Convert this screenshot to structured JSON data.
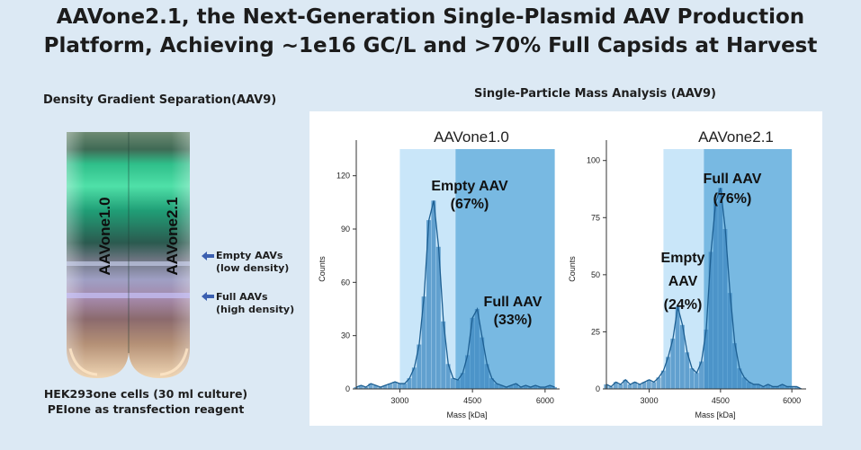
{
  "title": {
    "line1": "AAVone2.1, the Next-Generation Single-Plasmid AAV Production",
    "line2": "Platform, Achieving ~1e16 GC/L and >70% Full Capsids at Harvest"
  },
  "left_panel": {
    "heading": "Density Gradient Separation(AAV9)",
    "lane1_label": "AAVone1.0",
    "lane2_label": "AAVone2.1",
    "empty_label_line1": "Empty AAVs",
    "empty_label_line2": "(low density)",
    "full_label_line1": "Full AAVs",
    "full_label_line2": "(high density)",
    "footnote_line1": "HEK293one cells (30 ml culture)",
    "footnote_line2": "PEIone as transfection reagent"
  },
  "right_panel": {
    "heading": "Single-Particle Mass Analysis (AAV9)"
  },
  "colors": {
    "background": "#dce9f4",
    "empty_region": "#c9e6f9",
    "full_region": "#5aa9dc",
    "histogram": "#3d88c0",
    "fit_line": "#1d5f92"
  },
  "chart_data": [
    {
      "type": "bar",
      "title": "AAVone1.0",
      "xlabel": "Mass [kDa]",
      "ylabel": "Counts",
      "xlim": [
        2100,
        6300
      ],
      "ylim": [
        0,
        135
      ],
      "xticks": [
        3000,
        4500,
        6000
      ],
      "yticks": [
        0,
        30,
        60,
        90,
        120
      ],
      "grid": false,
      "shaded_regions": [
        {
          "name": "empty",
          "x": [
            3000,
            4150
          ]
        },
        {
          "name": "full",
          "x": [
            4150,
            6200
          ]
        }
      ],
      "histogram": {
        "x": [
          2100,
          2200,
          2300,
          2400,
          2500,
          2600,
          2700,
          2800,
          2900,
          3000,
          3100,
          3200,
          3300,
          3400,
          3500,
          3600,
          3700,
          3800,
          3900,
          4000,
          4100,
          4200,
          4300,
          4400,
          4500,
          4600,
          4700,
          4800,
          4900,
          5000,
          5100,
          5200,
          5300,
          5400,
          5500,
          5600,
          5700,
          5800,
          5900,
          6000,
          6100,
          6200
        ],
        "counts": [
          1,
          2,
          1,
          3,
          2,
          1,
          2,
          3,
          4,
          3,
          3,
          6,
          12,
          25,
          52,
          95,
          106,
          80,
          38,
          14,
          6,
          5,
          9,
          19,
          40,
          45,
          29,
          14,
          6,
          3,
          2,
          1,
          2,
          3,
          1,
          2,
          1,
          2,
          1,
          1,
          2,
          1
        ]
      },
      "annotations": [
        {
          "line1": "Empty AAV",
          "line2": "(67%)"
        },
        {
          "line1": "Full AAV",
          "line2": "(33%)"
        }
      ]
    },
    {
      "type": "bar",
      "title": "AAVone2.1",
      "xlabel": "Mass [kDa]",
      "ylabel": "Counts",
      "xlim": [
        2100,
        6300
      ],
      "ylim": [
        0,
        105
      ],
      "xticks": [
        3000,
        4500,
        6000
      ],
      "yticks": [
        0,
        25,
        50,
        75,
        100
      ],
      "grid": false,
      "shaded_regions": [
        {
          "name": "empty",
          "x": [
            3300,
            4150
          ]
        },
        {
          "name": "full",
          "x": [
            4150,
            6000
          ]
        }
      ],
      "histogram": {
        "x": [
          2100,
          2200,
          2300,
          2400,
          2500,
          2600,
          2700,
          2800,
          2900,
          3000,
          3100,
          3200,
          3300,
          3400,
          3500,
          3600,
          3700,
          3800,
          3900,
          4000,
          4100,
          4200,
          4300,
          4400,
          4500,
          4600,
          4700,
          4800,
          4900,
          5000,
          5100,
          5200,
          5300,
          5400,
          5500,
          5600,
          5700,
          5800,
          5900,
          6000,
          6100,
          6200
        ],
        "counts": [
          2,
          1,
          3,
          2,
          4,
          2,
          3,
          2,
          3,
          4,
          3,
          5,
          8,
          14,
          22,
          36,
          28,
          16,
          9,
          7,
          12,
          26,
          60,
          82,
          88,
          70,
          42,
          20,
          9,
          5,
          3,
          2,
          2,
          1,
          2,
          1,
          1,
          2,
          1,
          1,
          1,
          0
        ]
      },
      "annotations": [
        {
          "line1": "Empty",
          "line2": "AAV",
          "line3": "(24%)"
        },
        {
          "line1": "Full AAV",
          "line2": "(76%)"
        }
      ]
    }
  ]
}
